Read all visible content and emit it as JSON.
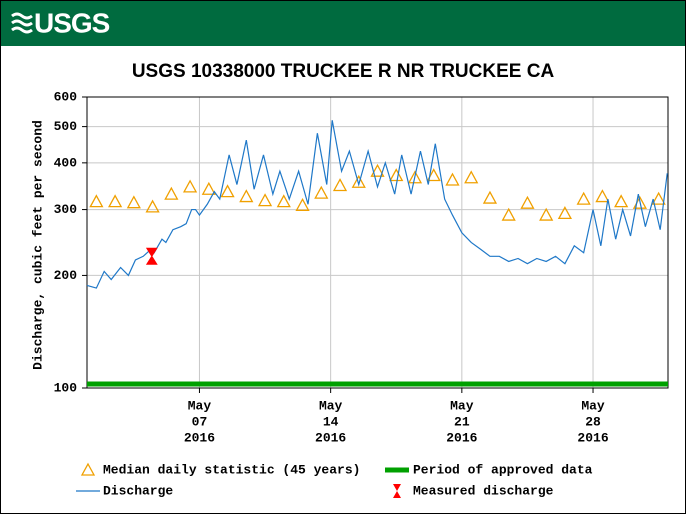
{
  "header": {
    "logo": "USGS"
  },
  "chart_data": {
    "type": "line",
    "title": "USGS 10338000 TRUCKEE R NR TRUCKEE CA",
    "ylabel": "Discharge, cubic feet per second",
    "yscale": "log",
    "ylim": [
      100,
      600
    ],
    "yticks": [
      100,
      200,
      300,
      400,
      500,
      600
    ],
    "xlim": [
      "2016-05-01",
      "2016-06-01"
    ],
    "xticks": [
      {
        "value": "2016-05-07",
        "label": [
          "May",
          "07",
          "2016"
        ]
      },
      {
        "value": "2016-05-14",
        "label": [
          "May",
          "14",
          "2016"
        ]
      },
      {
        "value": "2016-05-21",
        "label": [
          "May",
          "21",
          "2016"
        ]
      },
      {
        "value": "2016-05-28",
        "label": [
          "May",
          "28",
          "2016"
        ]
      }
    ],
    "grid": true,
    "series": [
      {
        "name": "Median daily statistic (45 years)",
        "color": "#f0a000",
        "marker": "triangle",
        "x": [
          "2016-05-01",
          "2016-05-02",
          "2016-05-03",
          "2016-05-04",
          "2016-05-05",
          "2016-05-06",
          "2016-05-07",
          "2016-05-08",
          "2016-05-09",
          "2016-05-10",
          "2016-05-11",
          "2016-05-12",
          "2016-05-13",
          "2016-05-14",
          "2016-05-15",
          "2016-05-16",
          "2016-05-17",
          "2016-05-18",
          "2016-05-19",
          "2016-05-20",
          "2016-05-21",
          "2016-05-22",
          "2016-05-23",
          "2016-05-24",
          "2016-05-25",
          "2016-05-26",
          "2016-05-27",
          "2016-05-28",
          "2016-05-29",
          "2016-05-30",
          "2016-05-31"
        ],
        "values": [
          315,
          315,
          313,
          305,
          330,
          345,
          340,
          335,
          325,
          317,
          315,
          308,
          332,
          348,
          355,
          380,
          370,
          365,
          370,
          360,
          365,
          322,
          290,
          312,
          290,
          293,
          320,
          325,
          315,
          312,
          320
        ]
      },
      {
        "name": "Period of approved data",
        "color": "#00a000",
        "marker": "band",
        "x": [
          "2016-05-01",
          "2016-06-01"
        ]
      },
      {
        "name": "Discharge",
        "color": "#1f78c8",
        "marker": "line",
        "x": [
          "2016-05-01T00:00",
          "2016-05-01T12:00",
          "2016-05-01T22:00",
          "2016-05-02T07:00",
          "2016-05-02T19:00",
          "2016-05-03T05:00",
          "2016-05-03T14:00",
          "2016-05-04T00:00",
          "2016-05-04T10:00",
          "2016-05-04T14:00",
          "2016-05-05T00:00",
          "2016-05-05T05:00",
          "2016-05-05T14:00",
          "2016-05-06T00:00",
          "2016-05-06T07:00",
          "2016-05-06T14:00",
          "2016-05-06T19:00",
          "2016-05-07T00:00",
          "2016-05-07T10:00",
          "2016-05-07T19:00",
          "2016-05-08T02:00",
          "2016-05-08T14:00",
          "2016-05-09T00:00",
          "2016-05-09T12:00",
          "2016-05-09T22:00",
          "2016-05-10T10:00",
          "2016-05-10T22:00",
          "2016-05-11T07:00",
          "2016-05-11T19:00",
          "2016-05-12T07:00",
          "2016-05-12T19:00",
          "2016-05-13T07:00",
          "2016-05-13T19:00",
          "2016-05-14T02:00",
          "2016-05-14T14:00",
          "2016-05-15T00:00",
          "2016-05-15T12:00",
          "2016-05-16T00:00",
          "2016-05-16T12:00",
          "2016-05-16T22:00",
          "2016-05-17T10:00",
          "2016-05-17T19:00",
          "2016-05-18T07:00",
          "2016-05-18T19:00",
          "2016-05-19T05:00",
          "2016-05-19T14:00",
          "2016-05-20T02:00",
          "2016-05-20T12:00",
          "2016-05-21T00:00",
          "2016-05-21T12:00",
          "2016-05-22T00:00",
          "2016-05-22T12:00",
          "2016-05-23T00:00",
          "2016-05-23T12:00",
          "2016-05-24T00:00",
          "2016-05-24T12:00",
          "2016-05-25T00:00",
          "2016-05-25T12:00",
          "2016-05-26T00:00",
          "2016-05-26T12:00",
          "2016-05-27T00:00",
          "2016-05-27T12:00",
          "2016-05-28T00:00",
          "2016-05-28T10:00",
          "2016-05-28T19:00",
          "2016-05-29T05:00",
          "2016-05-29T14:00",
          "2016-05-30T00:00",
          "2016-05-30T10:00",
          "2016-05-30T19:00",
          "2016-05-31T05:00",
          "2016-05-31T14:00",
          "2016-05-31T23:00"
        ],
        "values": [
          188,
          185,
          205,
          195,
          210,
          200,
          220,
          225,
          235,
          230,
          250,
          245,
          265,
          270,
          275,
          300,
          300,
          290,
          310,
          335,
          320,
          420,
          350,
          460,
          340,
          420,
          330,
          380,
          320,
          380,
          310,
          480,
          350,
          520,
          380,
          430,
          350,
          430,
          345,
          400,
          330,
          420,
          330,
          430,
          350,
          450,
          320,
          290,
          260,
          245,
          235,
          225,
          225,
          218,
          222,
          215,
          222,
          218,
          225,
          215,
          240,
          230,
          300,
          240,
          320,
          250,
          300,
          255,
          330,
          270,
          320,
          265,
          375
        ]
      },
      {
        "name": "Measured discharge",
        "color": "#ff0000",
        "marker": "bowtie",
        "x": [
          "2016-05-04T11:00"
        ],
        "values": [
          225
        ]
      }
    ]
  }
}
